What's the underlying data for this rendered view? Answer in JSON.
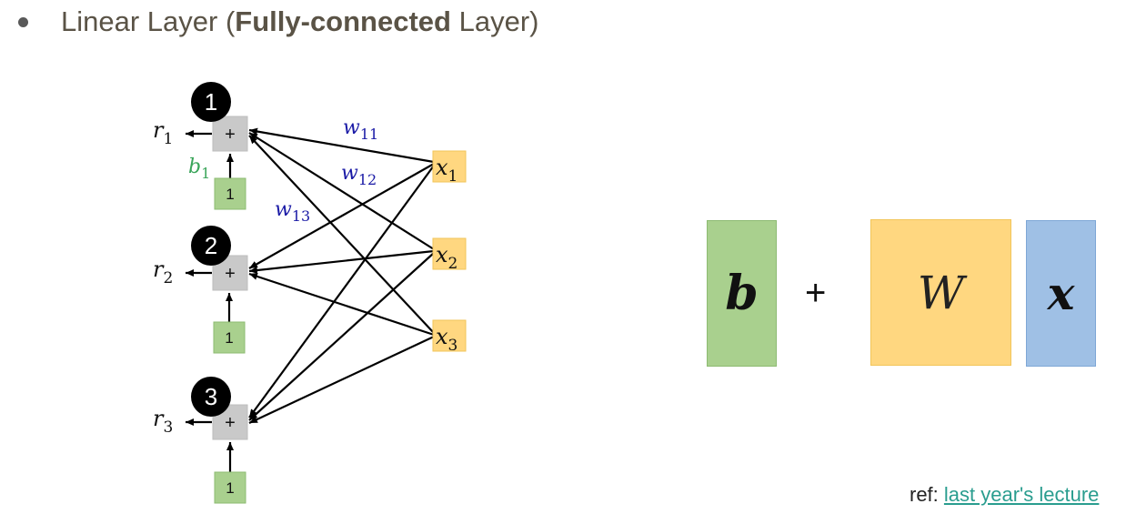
{
  "slide": {
    "heading": {
      "prefix": "Linear Layer (",
      "bold": "Fully-connected",
      "suffix": " Layer)"
    }
  },
  "network": {
    "neurons": [
      {
        "id": "1",
        "output": "r",
        "output_sub": "1",
        "bias_input": "1"
      },
      {
        "id": "2",
        "output": "r",
        "output_sub": "2",
        "bias_input": "1"
      },
      {
        "id": "3",
        "output": "r",
        "output_sub": "3",
        "bias_input": "1"
      }
    ],
    "sum_symbol": "+",
    "inputs": [
      {
        "name": "x",
        "sub": "1"
      },
      {
        "name": "x",
        "sub": "2"
      },
      {
        "name": "x",
        "sub": "3"
      }
    ],
    "bias_label": {
      "name": "b",
      "sub": "1"
    },
    "weight_labels": [
      {
        "name": "w",
        "sub": "11"
      },
      {
        "name": "w",
        "sub": "12"
      },
      {
        "name": "w",
        "sub": "13"
      }
    ],
    "colors": {
      "weight_text": "#1a1aa6",
      "bias_text": "#3aa55a",
      "sum_node": "#c9c9c9",
      "bias_box": "#a9d08e",
      "input_box": "#ffd780",
      "neuron_circle": "#000000"
    }
  },
  "equation": {
    "b": "b",
    "plus": "+",
    "W": "W",
    "x": "x",
    "colors": {
      "b": "#a9d08e",
      "W": "#ffd780",
      "x": "#9fc0e5"
    }
  },
  "footer": {
    "ref_prefix": "ref: ",
    "ref_link": "last year's lecture"
  }
}
